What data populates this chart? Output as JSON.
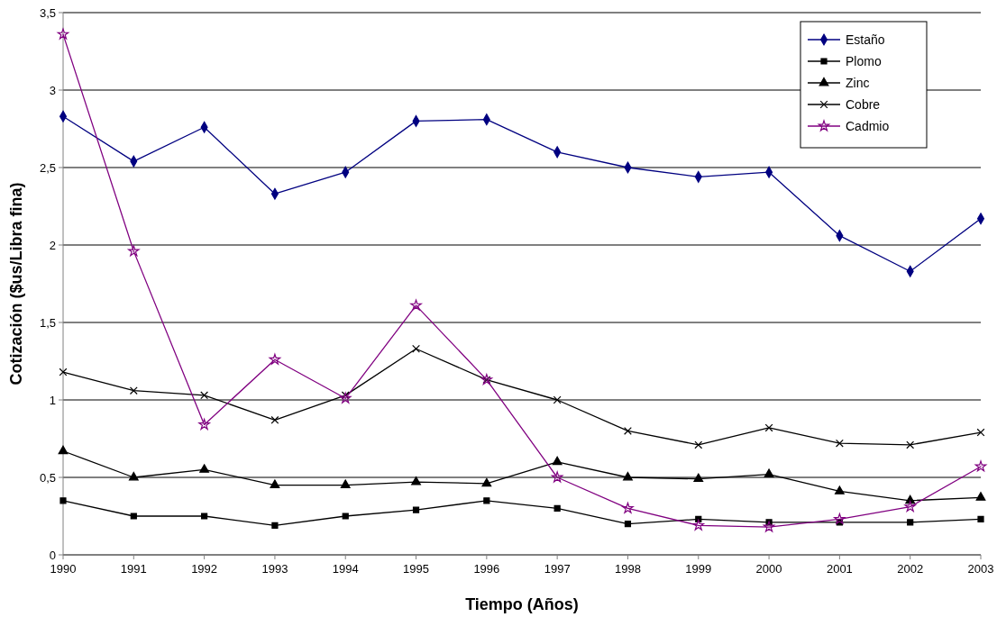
{
  "chart_data": {
    "type": "line",
    "xlabel": "Tiempo (Años)",
    "ylabel": "Cotización ($us/Libra fina)",
    "categories": [
      "1990",
      "1991",
      "1992",
      "1993",
      "1994",
      "1995",
      "1996",
      "1997",
      "1998",
      "1999",
      "2000",
      "2001",
      "2002",
      "2003"
    ],
    "series": [
      {
        "name": "Estaño",
        "color": "#000080",
        "marker": "diamond",
        "values": [
          2.83,
          2.54,
          2.76,
          2.33,
          2.47,
          2.8,
          2.81,
          2.6,
          2.5,
          2.44,
          2.47,
          2.06,
          1.83,
          2.17
        ]
      },
      {
        "name": "Plomo",
        "color": "#000000",
        "marker": "square",
        "values": [
          0.35,
          0.25,
          0.25,
          0.19,
          0.25,
          0.29,
          0.35,
          0.3,
          0.2,
          0.23,
          0.21,
          0.21,
          0.21,
          0.23
        ]
      },
      {
        "name": "Zinc",
        "color": "#000000",
        "marker": "triangle",
        "values": [
          0.67,
          0.5,
          0.55,
          0.45,
          0.45,
          0.47,
          0.46,
          0.6,
          0.5,
          0.49,
          0.52,
          0.41,
          0.35,
          0.37
        ]
      },
      {
        "name": "Cobre",
        "color": "#000000",
        "marker": "cross",
        "values": [
          1.18,
          1.06,
          1.03,
          0.87,
          1.03,
          1.33,
          1.13,
          1.0,
          0.8,
          0.71,
          0.82,
          0.72,
          0.71,
          0.79
        ]
      },
      {
        "name": "Cadmio",
        "color": "#800080",
        "marker": "star",
        "values": [
          3.36,
          1.96,
          0.84,
          1.26,
          1.01,
          1.61,
          1.13,
          0.5,
          0.3,
          0.19,
          0.18,
          0.23,
          0.31,
          0.57
        ]
      }
    ],
    "ylim": [
      0,
      3.5
    ],
    "yticks": [
      0,
      {
        "value": 0.5,
        "label": "0,5"
      },
      1,
      {
        "value": 1.5,
        "label": "1,5"
      },
      2,
      {
        "value": 2.5,
        "label": "2,5"
      },
      3,
      {
        "value": 3.5,
        "label": "3,5"
      }
    ],
    "grid": "y",
    "legend": "top right",
    "line_style": "solid"
  }
}
